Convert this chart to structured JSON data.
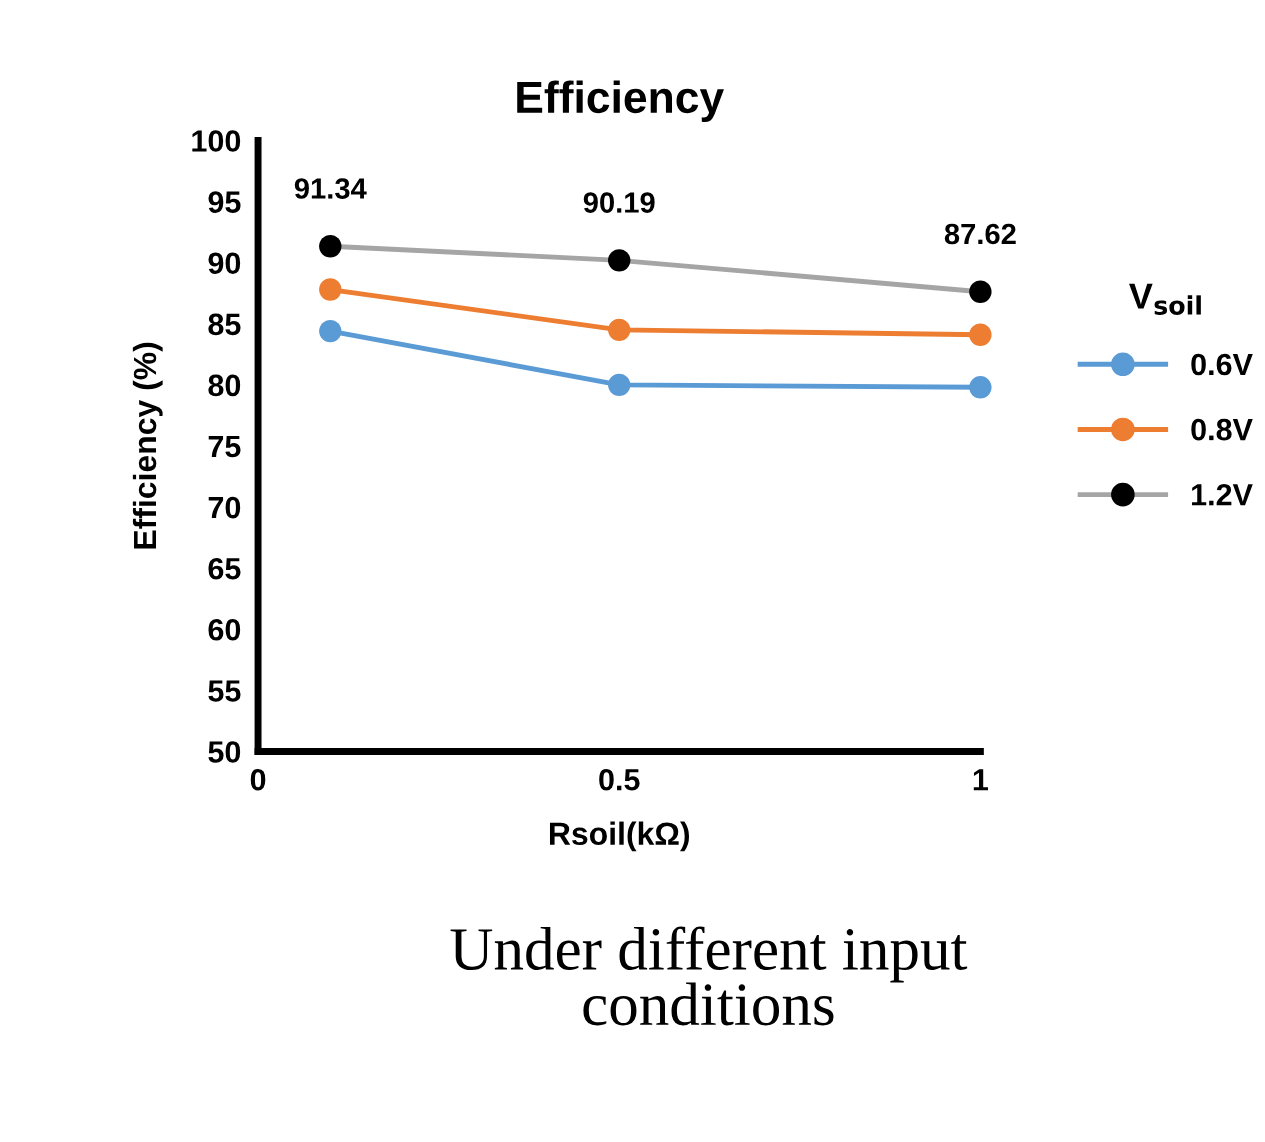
{
  "chart_data": {
    "type": "line",
    "title": "Efficiency",
    "xlabel": "Rsoil(kΩ)",
    "ylabel": "Efficiency (%)",
    "legend_title": "V$_{soil}$",
    "x": [
      0.1,
      0.5,
      1
    ],
    "series": [
      {
        "name": "0.6V",
        "color": "#5b9bd5",
        "values": [
          84.4,
          80.0,
          79.8
        ]
      },
      {
        "name": "0.8V",
        "color": "#ed7d31",
        "values": [
          87.8,
          84.5,
          84.1
        ]
      },
      {
        "name": "1.2V",
        "color": "#a5a5a5",
        "colors": [
          "#000000",
          "#000000",
          "#000000"
        ],
        "values": [
          91.34,
          90.19,
          87.62
        ],
        "value_labels": [
          "91.34",
          "90.19",
          "87.62"
        ]
      }
    ],
    "xlim": [
      0,
      1
    ],
    "xticks": [
      0,
      0.5,
      1
    ],
    "ylim": [
      50,
      100
    ],
    "yticks": [
      50,
      55,
      60,
      65,
      70,
      75,
      80,
      85,
      90,
      95,
      100
    ],
    "grid": false,
    "legend": "right",
    "marker": "circle",
    "line_style": "solid",
    "annotations": [
      "Under different input\nconditions"
    ]
  }
}
